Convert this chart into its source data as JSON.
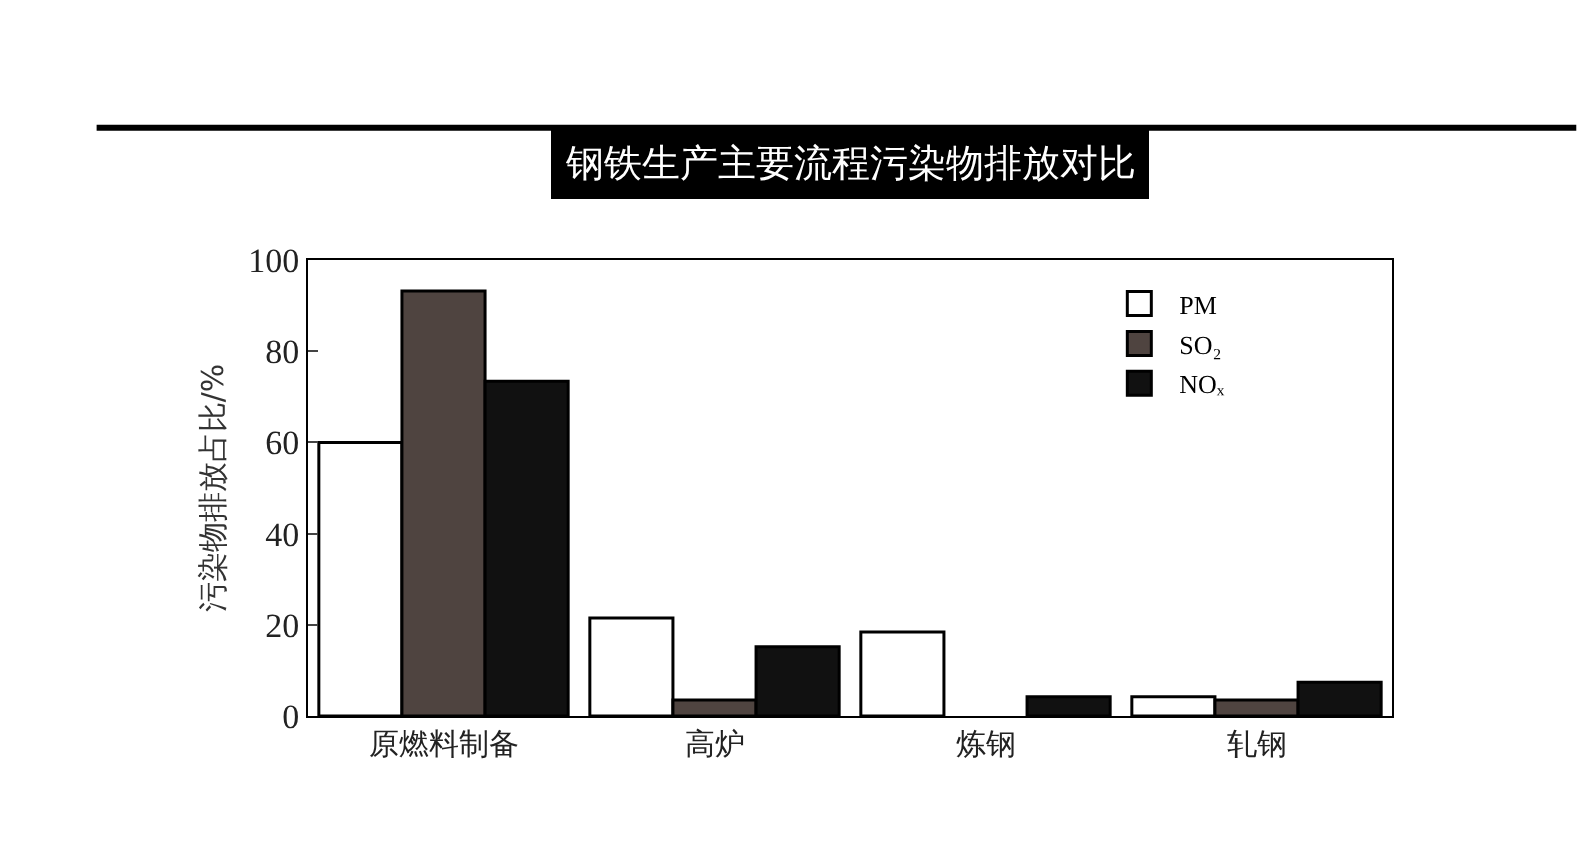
{
  "chart_data": {
    "type": "bar",
    "title": "钢铁生产主要流程污染物排放对比",
    "ylabel": "污染物排放占比/%",
    "categories": [
      "原燃料制备",
      "高炉",
      "炼钢",
      "轧钢"
    ],
    "series": [
      {
        "name": "PM",
        "color": "#ffffff",
        "values": [
          60,
          21.5,
          18.4,
          4.2
        ]
      },
      {
        "name": "SO₂",
        "color": "#4f4440",
        "values": [
          93.2,
          3.5,
          null,
          3.5
        ]
      },
      {
        "name": "NOₓ",
        "color": "#111111",
        "values": [
          73.4,
          15.2,
          4.2,
          7.4
        ]
      }
    ],
    "ylim": [
      0,
      100
    ],
    "yticks": [
      0,
      20,
      40,
      60,
      80,
      100
    ],
    "legend": "top right"
  }
}
